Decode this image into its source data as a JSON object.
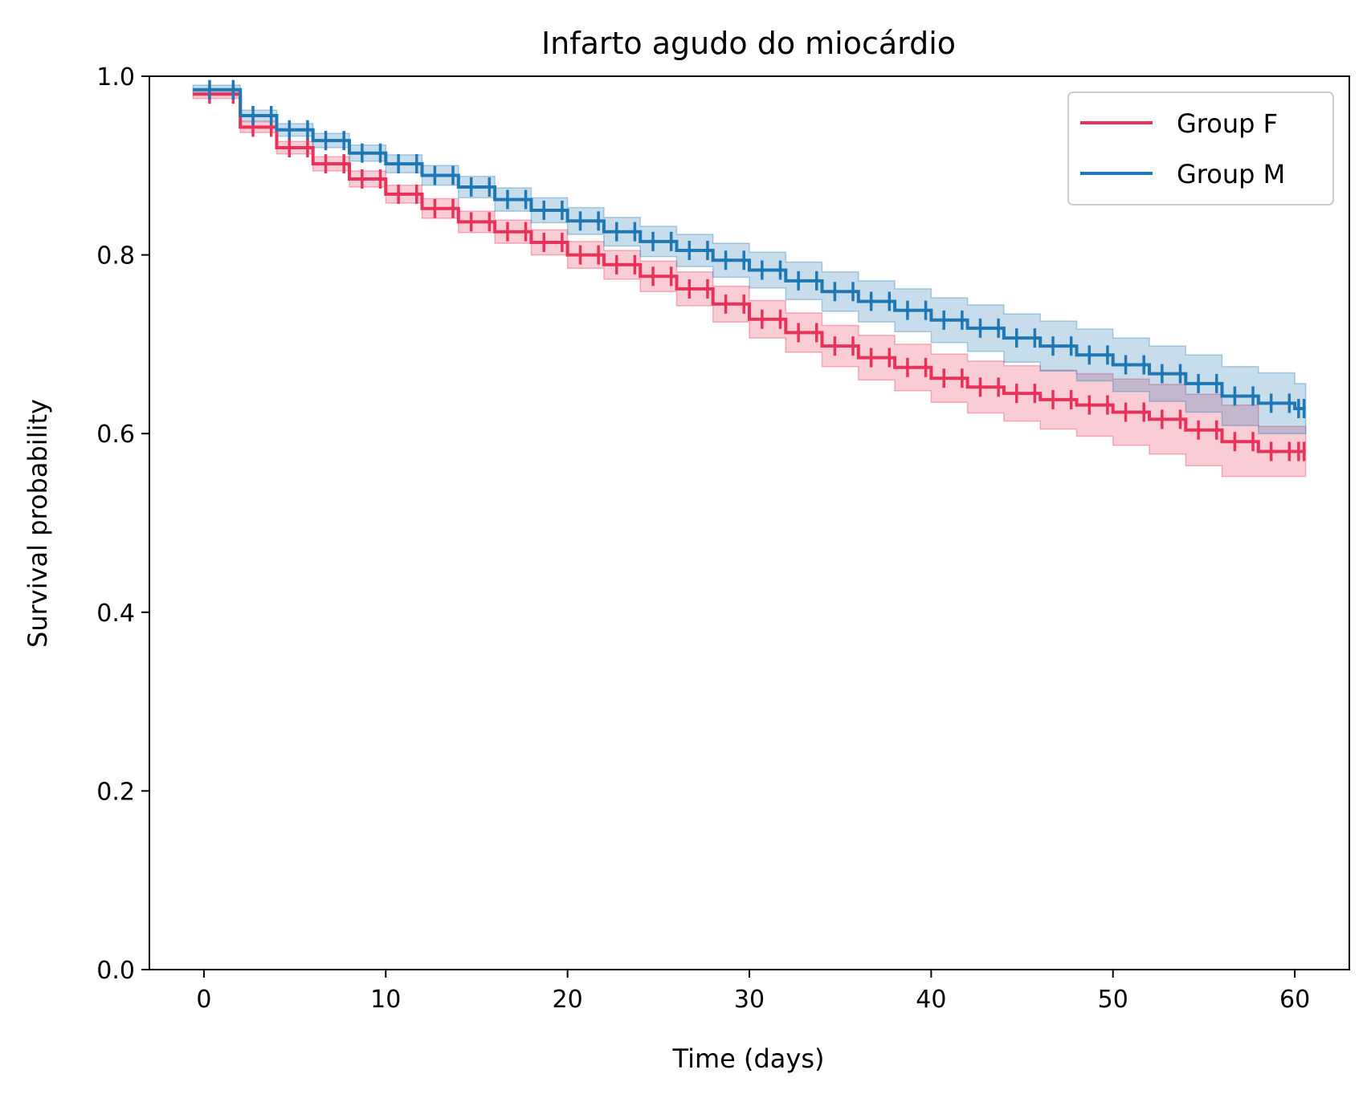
{
  "chart_data": {
    "type": "line",
    "title": "Infarto agudo do miocárdio",
    "xlabel": "Time (days)",
    "ylabel": "Survival probability",
    "xlim": [
      -3,
      63
    ],
    "ylim": [
      0.0,
      1.0
    ],
    "xticks": [
      0,
      10,
      20,
      30,
      40,
      50,
      60
    ],
    "xtick_labels": [
      "0",
      "10",
      "20",
      "30",
      "40",
      "50",
      "60"
    ],
    "yticks": [
      0.0,
      0.2,
      0.4,
      0.6,
      0.8,
      1.0
    ],
    "ytick_labels": [
      "0.0",
      "0.2",
      "0.4",
      "0.6",
      "0.8",
      "1.0"
    ],
    "legend_position": "top-right",
    "grid": false,
    "series": [
      {
        "name": "Group F",
        "color": "#e8325a",
        "band_color": "#e8325a",
        "x": [
          0,
          2,
          4,
          6,
          8,
          10,
          12,
          14,
          16,
          18,
          20,
          22,
          24,
          26,
          28,
          30,
          32,
          34,
          36,
          38,
          40,
          42,
          44,
          46,
          48,
          50,
          52,
          54,
          56,
          58,
          60
        ],
        "y": [
          0.98,
          0.943,
          0.92,
          0.902,
          0.885,
          0.868,
          0.852,
          0.837,
          0.826,
          0.814,
          0.8,
          0.789,
          0.776,
          0.762,
          0.745,
          0.728,
          0.713,
          0.698,
          0.685,
          0.674,
          0.662,
          0.652,
          0.645,
          0.638,
          0.632,
          0.624,
          0.616,
          0.604,
          0.591,
          0.58,
          0.58
        ],
        "ci_lower": [
          0.975,
          0.937,
          0.913,
          0.894,
          0.876,
          0.858,
          0.841,
          0.825,
          0.813,
          0.8,
          0.785,
          0.773,
          0.759,
          0.743,
          0.725,
          0.707,
          0.691,
          0.675,
          0.66,
          0.648,
          0.635,
          0.623,
          0.614,
          0.605,
          0.597,
          0.587,
          0.577,
          0.564,
          0.552,
          0.552,
          0.552
        ],
        "ci_upper": [
          0.985,
          0.949,
          0.927,
          0.91,
          0.894,
          0.878,
          0.863,
          0.849,
          0.839,
          0.828,
          0.815,
          0.805,
          0.793,
          0.781,
          0.765,
          0.749,
          0.735,
          0.721,
          0.71,
          0.7,
          0.689,
          0.681,
          0.676,
          0.671,
          0.667,
          0.661,
          0.655,
          0.644,
          0.632,
          0.608,
          0.608
        ]
      },
      {
        "name": "Group M",
        "color": "#1f77b4",
        "band_color": "#1f77b4",
        "x": [
          0,
          2,
          4,
          6,
          8,
          10,
          12,
          14,
          16,
          18,
          20,
          22,
          24,
          26,
          28,
          30,
          32,
          34,
          36,
          38,
          40,
          42,
          44,
          46,
          48,
          50,
          52,
          54,
          56,
          58,
          60
        ],
        "y": [
          0.985,
          0.956,
          0.94,
          0.928,
          0.914,
          0.902,
          0.889,
          0.876,
          0.862,
          0.85,
          0.838,
          0.826,
          0.815,
          0.805,
          0.794,
          0.783,
          0.771,
          0.759,
          0.748,
          0.738,
          0.727,
          0.718,
          0.707,
          0.698,
          0.688,
          0.677,
          0.667,
          0.656,
          0.642,
          0.634,
          0.628
        ],
        "ci_lower": [
          0.98,
          0.95,
          0.933,
          0.92,
          0.905,
          0.892,
          0.878,
          0.864,
          0.849,
          0.836,
          0.823,
          0.81,
          0.798,
          0.787,
          0.775,
          0.763,
          0.75,
          0.737,
          0.725,
          0.714,
          0.702,
          0.692,
          0.68,
          0.67,
          0.659,
          0.647,
          0.636,
          0.624,
          0.609,
          0.6,
          0.6
        ],
        "ci_upper": [
          0.99,
          0.962,
          0.947,
          0.936,
          0.923,
          0.912,
          0.9,
          0.888,
          0.875,
          0.864,
          0.853,
          0.842,
          0.832,
          0.823,
          0.813,
          0.803,
          0.792,
          0.781,
          0.771,
          0.762,
          0.752,
          0.744,
          0.734,
          0.726,
          0.717,
          0.707,
          0.698,
          0.688,
          0.675,
          0.668,
          0.656
        ]
      }
    ]
  }
}
